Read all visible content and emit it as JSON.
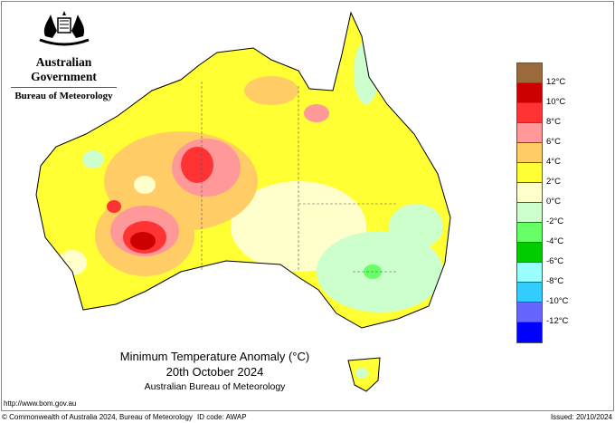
{
  "header": {
    "government": "Australian Government",
    "bureau": "Bureau of Meteorology"
  },
  "title": {
    "line1": "Minimum Temperature Anomaly (°C)",
    "line2": "20th October 2024",
    "line3": "Australian Bureau of Meteorology"
  },
  "url": "http://www.bom.gov.au",
  "footer": {
    "copyright": "© Commonwealth of Australia 2024, Bureau of Meteorology",
    "id_code": "ID code: AWAP",
    "issued": "Issued: 20/10/2024"
  },
  "legend": {
    "colors": [
      "#9b6a3c",
      "#cc0000",
      "#ff3333",
      "#ff9999",
      "#ffcc66",
      "#ffff33",
      "#ffffcc",
      "#ccffcc",
      "#66ff66",
      "#00cc00",
      "#99ffff",
      "#33ccff",
      "#6666ff",
      "#0000ff"
    ],
    "labels": [
      "12°C",
      "10°C",
      "8°C",
      "6°C",
      "4°C",
      "2°C",
      "0°C",
      "-2°C",
      "-4°C",
      "-6°C",
      "-8°C",
      "-10°C",
      "-12°C"
    ]
  }
}
